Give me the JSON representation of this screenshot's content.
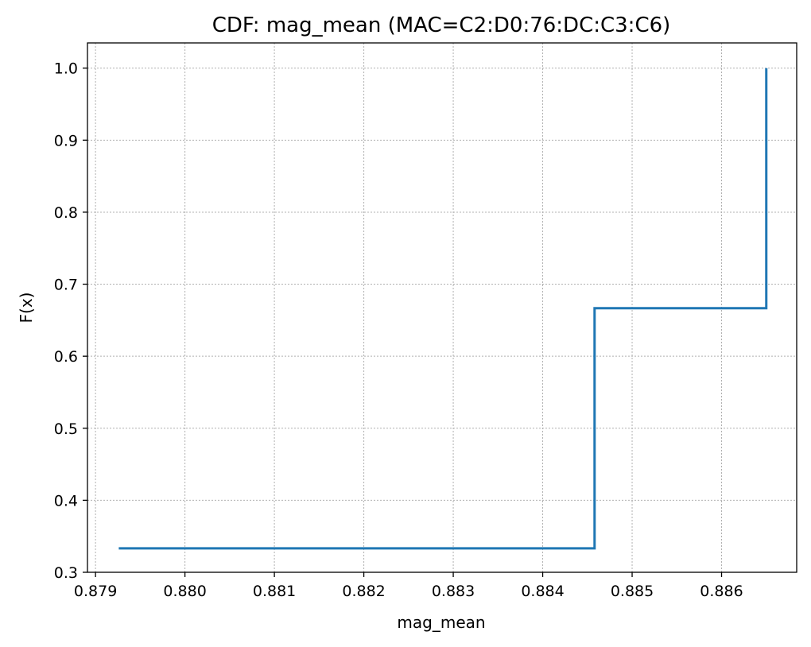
{
  "chart_data": {
    "type": "line",
    "step": true,
    "title": "CDF: mag_mean (MAC=C2:D0:76:DC:C3:C6)",
    "xlabel": "mag_mean",
    "ylabel": "F(x)",
    "xlim": [
      0.87891,
      0.88684
    ],
    "ylim": [
      0.3,
      1.035
    ],
    "xticks": [
      0.879,
      0.88,
      0.881,
      0.882,
      0.883,
      0.884,
      0.885,
      0.886
    ],
    "xtick_labels": [
      "0.879",
      "0.880",
      "0.881",
      "0.882",
      "0.883",
      "0.884",
      "0.885",
      "0.886"
    ],
    "yticks": [
      0.3,
      0.4,
      0.5,
      0.6,
      0.7,
      0.8,
      0.9,
      1.0
    ],
    "ytick_labels": [
      "0.3",
      "0.4",
      "0.5",
      "0.6",
      "0.7",
      "0.8",
      "0.9",
      "1.0"
    ],
    "grid": true,
    "series": [
      {
        "color": "#1f77b4",
        "x": [
          0.87926,
          0.88458,
          0.88458,
          0.8865,
          0.8865
        ],
        "y": [
          0.3333,
          0.3333,
          0.6667,
          0.6667,
          1.0
        ]
      }
    ]
  }
}
